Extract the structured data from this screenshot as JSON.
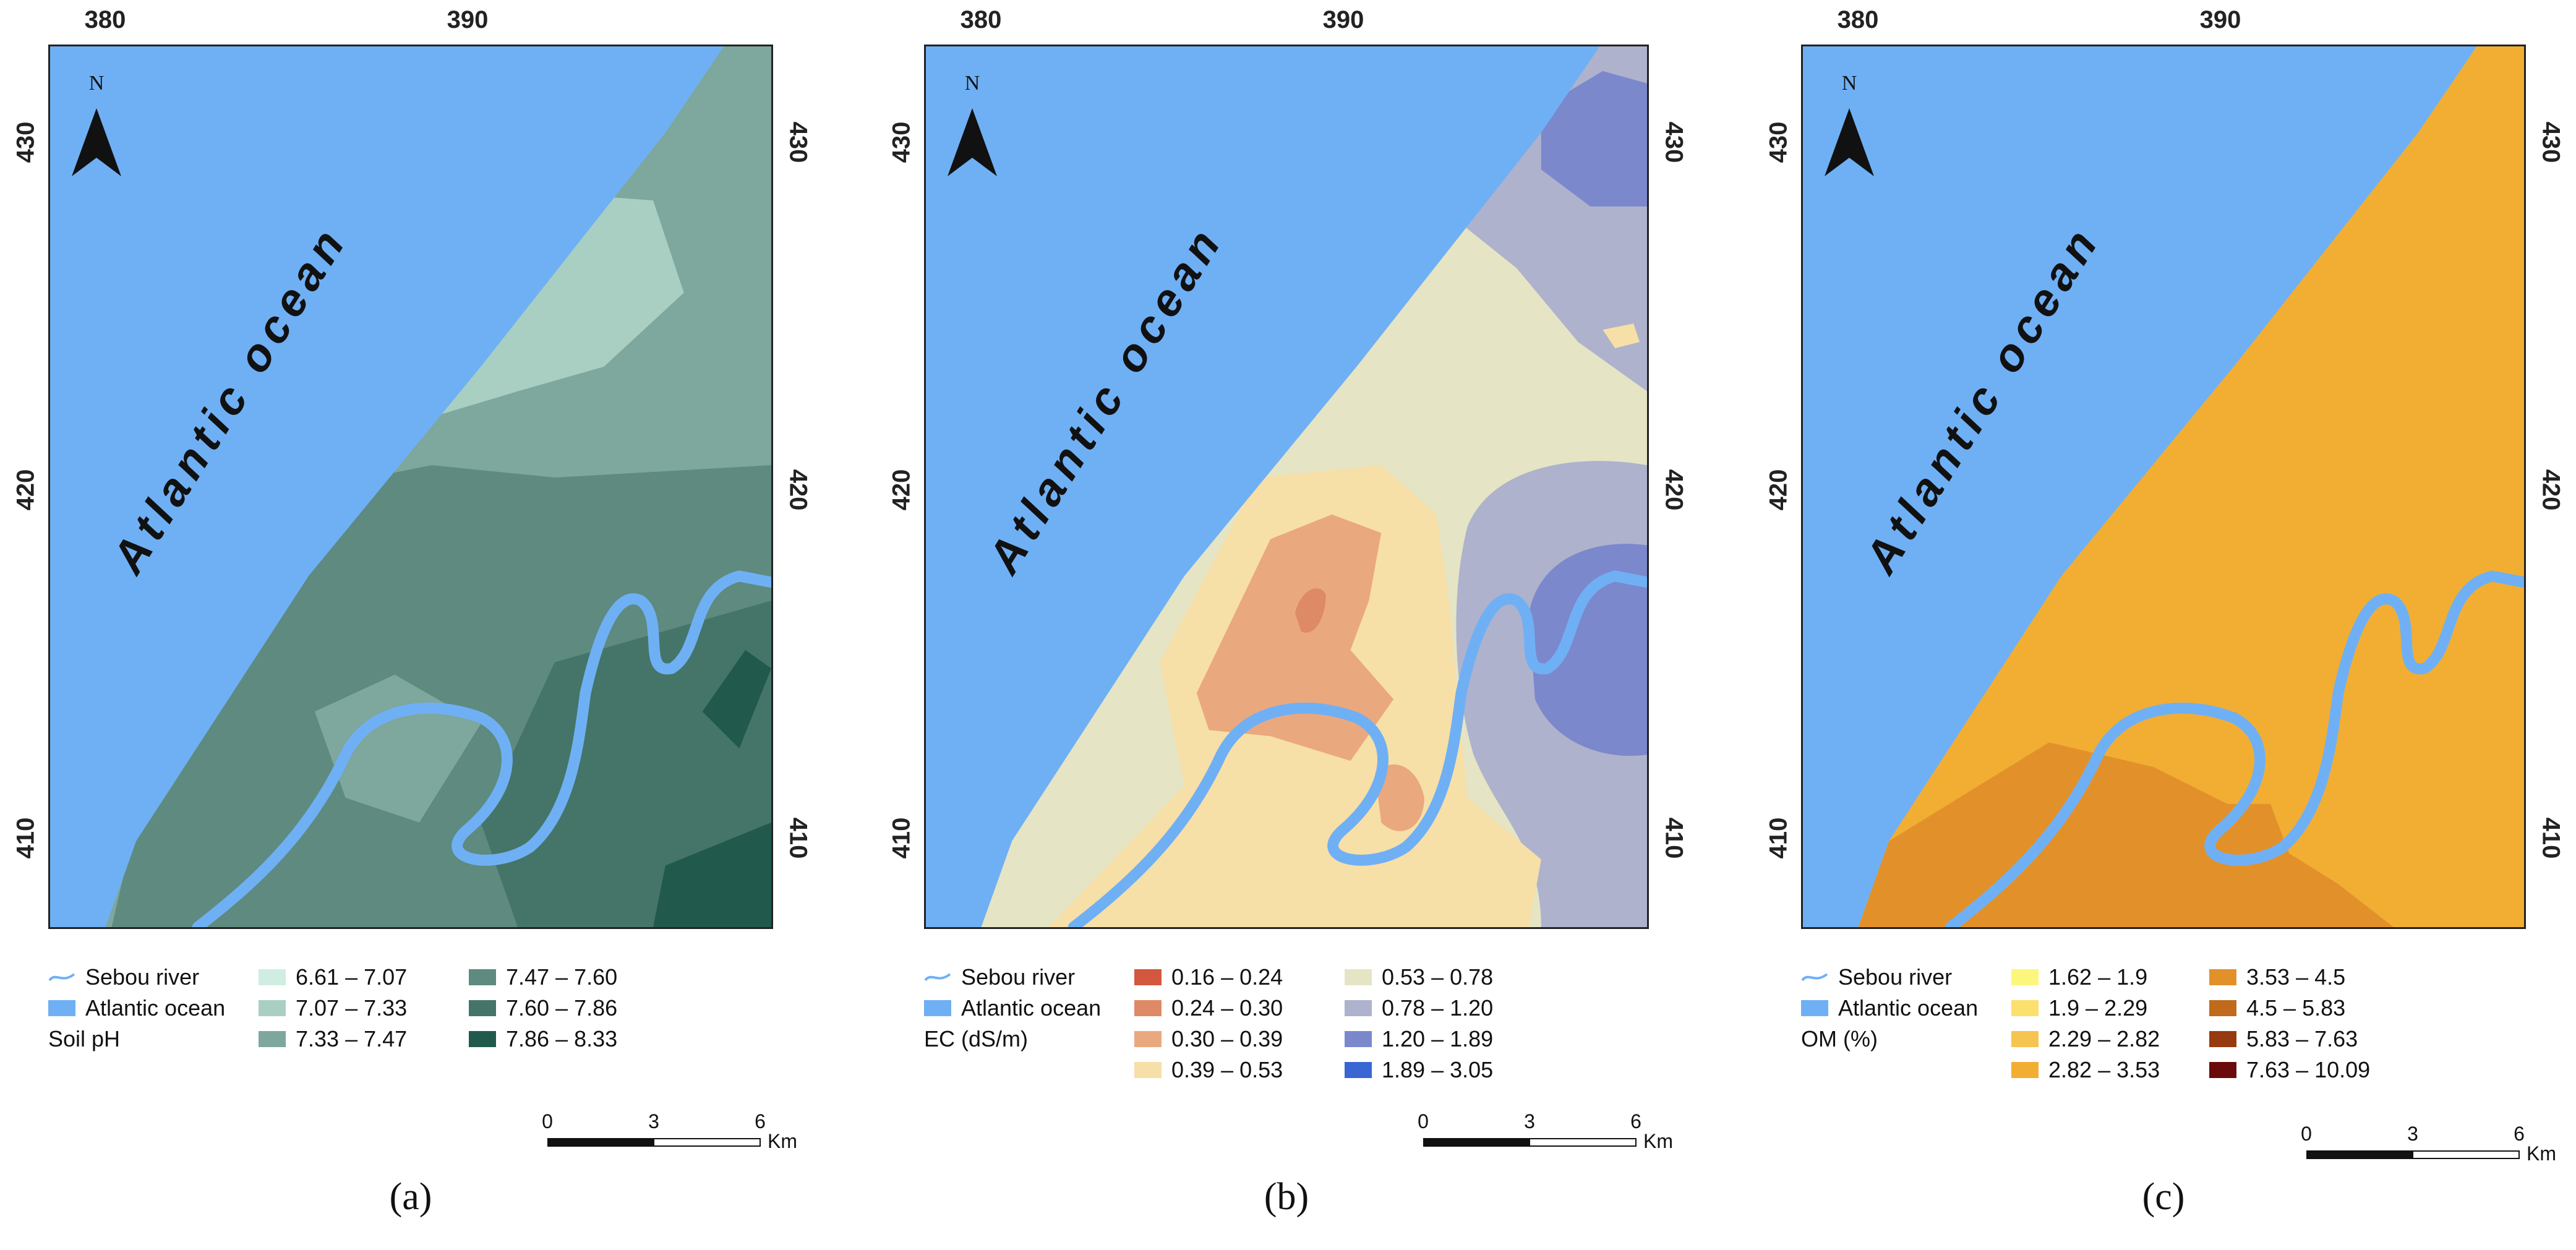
{
  "ocean_label": "Atlantic ocean",
  "north_label": "N",
  "x_ticks": [
    "380",
    "390"
  ],
  "y_ticks": [
    "430",
    "420",
    "410"
  ],
  "scale": {
    "labels": [
      "0",
      "3",
      "6"
    ],
    "unit": "Km"
  },
  "common_legend": {
    "river": "Sebou river",
    "ocean": "Atlantic ocean"
  },
  "colors": {
    "ocean": "#6fb0f5",
    "river": "#6fb0f5"
  },
  "panels": [
    {
      "letter": "(a)",
      "variable": "Soil pH",
      "classes": [
        {
          "label": "6.61 – 7.07",
          "color": "#cfeee1"
        },
        {
          "label": "7.07 – 7.33",
          "color": "#a9cfc3"
        },
        {
          "label": "7.33 – 7.47",
          "color": "#7ea79d"
        },
        {
          "label": "7.47 – 7.60",
          "color": "#5e8a7f"
        },
        {
          "label": "7.60 – 7.86",
          "color": "#447568"
        },
        {
          "label": "7.86 – 8.33",
          "color": "#215a4c"
        }
      ]
    },
    {
      "letter": "(b)",
      "variable": "EC (dS/m)",
      "classes": [
        {
          "label": "0.16 – 0.24",
          "color": "#d4573f"
        },
        {
          "label": "0.24 – 0.30",
          "color": "#de8a66"
        },
        {
          "label": "0.30 – 0.39",
          "color": "#eaa87f"
        },
        {
          "label": "0.39 – 0.53",
          "color": "#f7dfa8"
        },
        {
          "label": "0.53 – 0.78",
          "color": "#e5e4c5"
        },
        {
          "label": "0.78 – 1.20",
          "color": "#aeb2cc"
        },
        {
          "label": "1.20 – 1.89",
          "color": "#7c88cc"
        },
        {
          "label": "1.89 – 3.05",
          "color": "#3a66d4"
        }
      ]
    },
    {
      "letter": "(c)",
      "variable": "OM (%)",
      "classes": [
        {
          "label": "1.62 – 1.9",
          "color": "#fdf67c"
        },
        {
          "label": "1.9 – 2.29",
          "color": "#fbe06b"
        },
        {
          "label": "2.29 – 2.82",
          "color": "#f5c451"
        },
        {
          "label": "2.82 – 3.53",
          "color": "#f2ae33"
        },
        {
          "label": "3.53 – 4.5",
          "color": "#e2912a"
        },
        {
          "label": "4.5 – 5.83",
          "color": "#bf6a1c"
        },
        {
          "label": "5.83 – 7.63",
          "color": "#963a0f"
        },
        {
          "label": "7.63 – 10.09",
          "color": "#6a0a0a"
        }
      ]
    }
  ]
}
